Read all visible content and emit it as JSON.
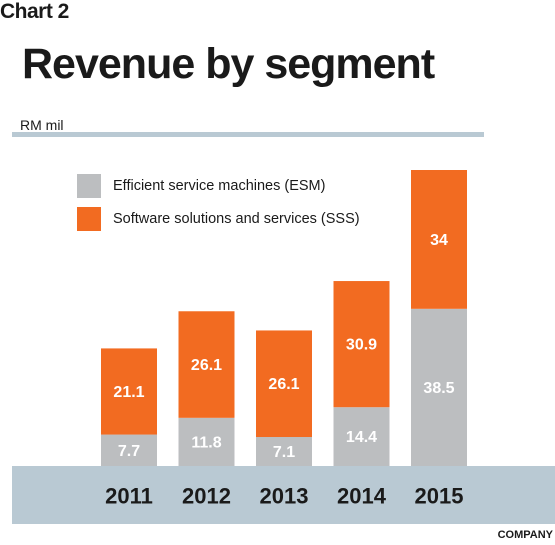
{
  "header": {
    "chart_label": "Chart 2",
    "title": "Revenue by segment",
    "unit": "RM mil",
    "source": "COMPANY"
  },
  "colors": {
    "esm": "#bcbec0",
    "sss": "#f26b21",
    "axis_band": "#b9c9d3",
    "label_dark": "#1a1a1a",
    "label_light": "#ffffff"
  },
  "chart_data": {
    "type": "bar",
    "stacked": true,
    "categories": [
      "2011",
      "2012",
      "2013",
      "2014",
      "2015"
    ],
    "series": [
      {
        "name": "Efficient service machines (ESM)",
        "values": [
          7.7,
          11.8,
          7.1,
          14.4,
          38.5
        ],
        "color": "#bcbec0"
      },
      {
        "name": "Software solutions and services (SSS)",
        "values": [
          21.1,
          26.1,
          26.1,
          30.9,
          34
        ],
        "color": "#f26b21"
      }
    ],
    "title": "Revenue by segment",
    "ylabel": "RM mil",
    "ylim": [
      0,
      72.5
    ],
    "grid": false,
    "legend_position": "top-left"
  }
}
